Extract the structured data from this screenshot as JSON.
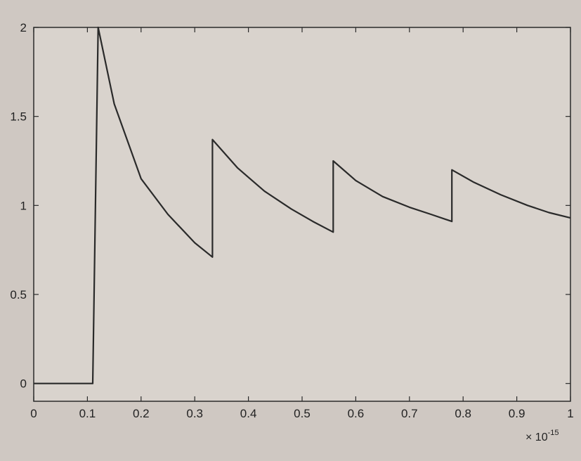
{
  "chart_data": {
    "type": "line",
    "title": "",
    "xlabel": "",
    "ylabel": "",
    "x_exponent": "-15",
    "x_exponent_prefix": "× 10",
    "xlim": [
      0,
      1
    ],
    "ylim": [
      -0.1,
      2
    ],
    "grid": false,
    "legend": "none",
    "line_color": "#2a2a2a",
    "xticks": [
      0,
      0.1,
      0.2,
      0.3,
      0.4,
      0.5,
      0.6,
      0.7,
      0.8,
      0.9,
      1
    ],
    "xtick_labels": [
      "0",
      "0.1",
      "0.2",
      "0.3",
      "0.4",
      "0.5",
      "0.6",
      "0.7",
      "0.8",
      "0.9",
      "1"
    ],
    "yticks": [
      0,
      0.5,
      1,
      1.5,
      2
    ],
    "ytick_labels": [
      "0",
      "0.5",
      "1",
      "1.5",
      "2"
    ],
    "series": [
      {
        "x": [
          0,
          0.11,
          0.11,
          0.12,
          0.15,
          0.2,
          0.25,
          0.3,
          0.333,
          0.333,
          0.38,
          0.43,
          0.48,
          0.52,
          0.558,
          0.558,
          0.6,
          0.65,
          0.7,
          0.74,
          0.779,
          0.779,
          0.82,
          0.87,
          0.92,
          0.96,
          1.0
        ],
        "y": [
          0,
          0,
          0,
          2.0,
          1.57,
          1.15,
          0.95,
          0.79,
          0.71,
          1.37,
          1.21,
          1.08,
          0.98,
          0.91,
          0.85,
          1.25,
          1.14,
          1.05,
          0.99,
          0.95,
          0.91,
          1.2,
          1.13,
          1.06,
          1.0,
          0.96,
          0.93
        ]
      }
    ]
  }
}
